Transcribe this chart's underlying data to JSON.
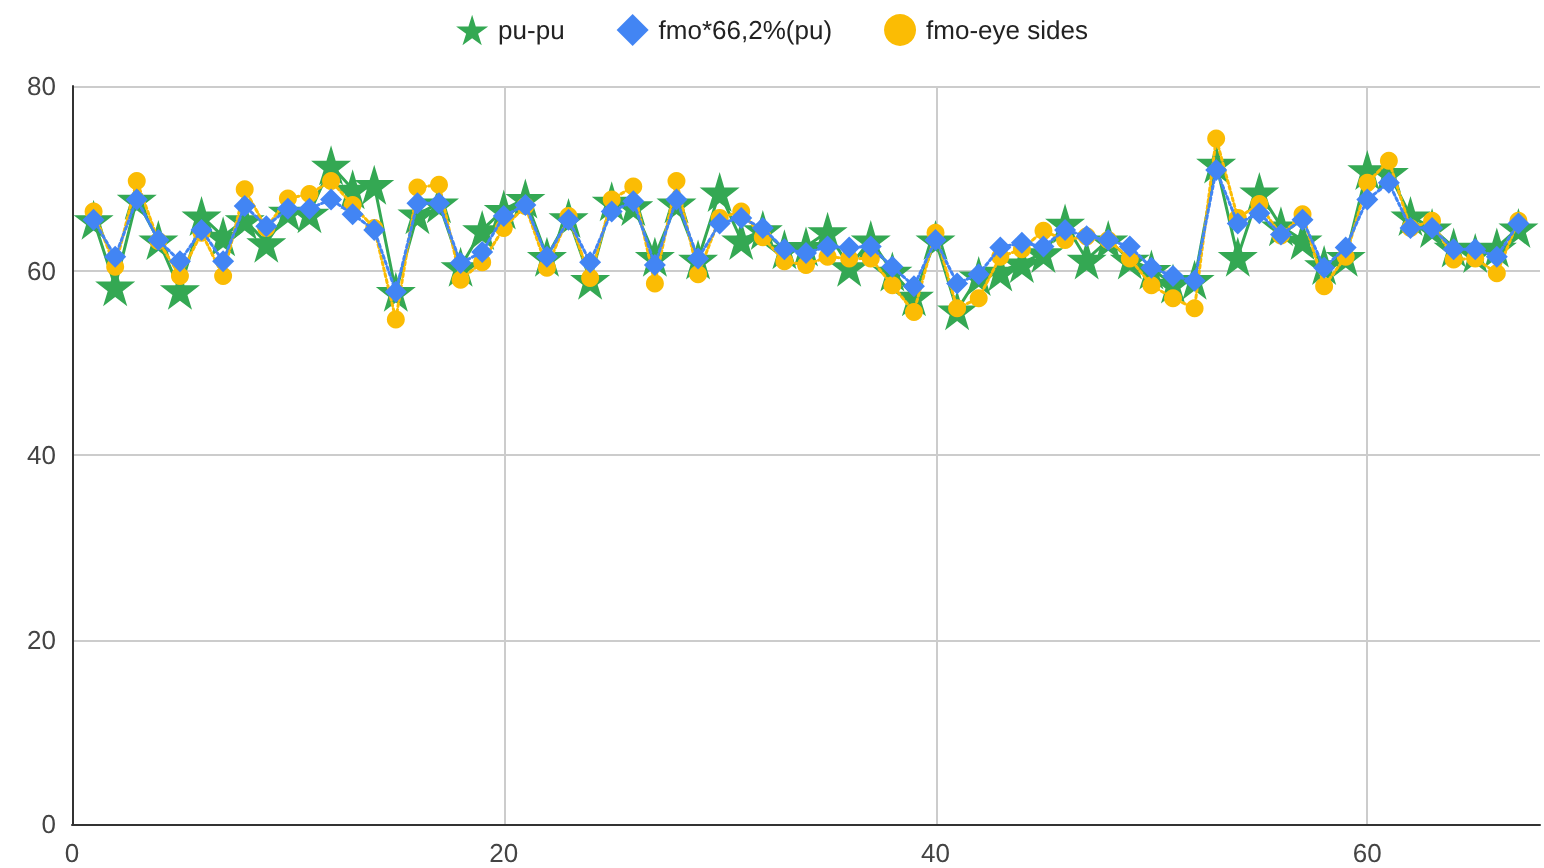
{
  "chart_data": {
    "type": "line",
    "x": [
      1,
      2,
      3,
      4,
      5,
      6,
      7,
      8,
      9,
      10,
      11,
      12,
      13,
      14,
      15,
      16,
      17,
      18,
      19,
      20,
      21,
      22,
      23,
      24,
      25,
      26,
      27,
      28,
      29,
      30,
      31,
      32,
      33,
      34,
      35,
      36,
      37,
      38,
      39,
      40,
      41,
      42,
      43,
      44,
      45,
      46,
      47,
      48,
      49,
      50,
      51,
      52,
      53,
      54,
      55,
      56,
      57,
      58,
      59,
      60,
      61,
      62,
      63,
      64,
      65,
      66,
      67
    ],
    "series": [
      {
        "name": "pu-pu",
        "color": "#34a853",
        "marker": "star",
        "line_style": "solid",
        "values": [
          65.5,
          58.3,
          67.7,
          63.3,
          57.9,
          65.9,
          63.7,
          65.5,
          63,
          66.4,
          66.2,
          71.4,
          68.8,
          69.3,
          57.7,
          66.1,
          67.3,
          60.4,
          64.4,
          66.6,
          67.8,
          61.5,
          65.7,
          59,
          67.5,
          67,
          61.5,
          67.3,
          61.2,
          68.5,
          63.3,
          64.4,
          62.3,
          62.6,
          64.2,
          60.4,
          63.3,
          59.9,
          57.2,
          63.3,
          55.7,
          59.4,
          59.9,
          60.8,
          61.9,
          65.1,
          61.2,
          63.3,
          61.2,
          60.1,
          58.6,
          59,
          71.6,
          61.5,
          68.5,
          64.8,
          63.3,
          60.6,
          61.5,
          70.9,
          70.6,
          65.9,
          64.6,
          62.5,
          61.9,
          62.5,
          64.6
        ]
      },
      {
        "name": "fmo*66,2%(pu)",
        "color": "#4285f4",
        "marker": "diamond",
        "line_style": "dotted",
        "values": [
          65.5,
          61.5,
          67.7,
          63.3,
          61,
          64.4,
          61,
          67,
          64.8,
          66.7,
          66.7,
          67.7,
          66.1,
          64.4,
          57.7,
          67.3,
          67.3,
          60.8,
          62,
          65.9,
          67.1,
          61.5,
          65.5,
          60.9,
          66.4,
          67.5,
          60.6,
          67.7,
          61.3,
          65.1,
          65.7,
          64.6,
          62.3,
          61.9,
          62.6,
          62.5,
          62.6,
          60.4,
          58.3,
          63.3,
          58.6,
          59.6,
          62.5,
          63,
          62.6,
          64.4,
          63.7,
          63.3,
          62.6,
          60.3,
          59.4,
          58.9,
          70.9,
          65.1,
          66.2,
          63.9,
          65.5,
          60.3,
          62.5,
          67.7,
          69.5,
          64.6,
          64.6,
          62.3,
          62.3,
          61.5,
          65.1
        ]
      },
      {
        "name": "fmo-eye sides",
        "color": "#fbbc04",
        "marker": "circle",
        "line_style": "dotted",
        "values": [
          66.4,
          60.4,
          69.7,
          63.2,
          59.4,
          64.1,
          59.4,
          68.8,
          64.6,
          67.8,
          68.3,
          69.7,
          67.1,
          64.6,
          54.7,
          69,
          69.3,
          59,
          60.9,
          64.6,
          67,
          60.3,
          65.9,
          59.2,
          67.7,
          69.1,
          58.6,
          69.7,
          59.6,
          65.7,
          66.4,
          63.6,
          61,
          60.6,
          61.5,
          61.3,
          61.3,
          58.4,
          55.5,
          64.1,
          55.9,
          57,
          61.5,
          62.3,
          64.3,
          63.3,
          63.7,
          63.3,
          61.3,
          58.4,
          57,
          55.9,
          74.3,
          65.7,
          67.2,
          63.8,
          66.1,
          58.3,
          61.5,
          69.5,
          71.9,
          64.6,
          65.4,
          61.2,
          61.3,
          59.7,
          65.4
        ]
      }
    ],
    "xlim": [
      0,
      68
    ],
    "xticks": [
      0,
      20,
      40,
      60
    ],
    "ylim": [
      0,
      80
    ],
    "yticks": [
      0,
      20,
      40,
      60,
      80
    ],
    "grid": true,
    "legend": "top"
  }
}
